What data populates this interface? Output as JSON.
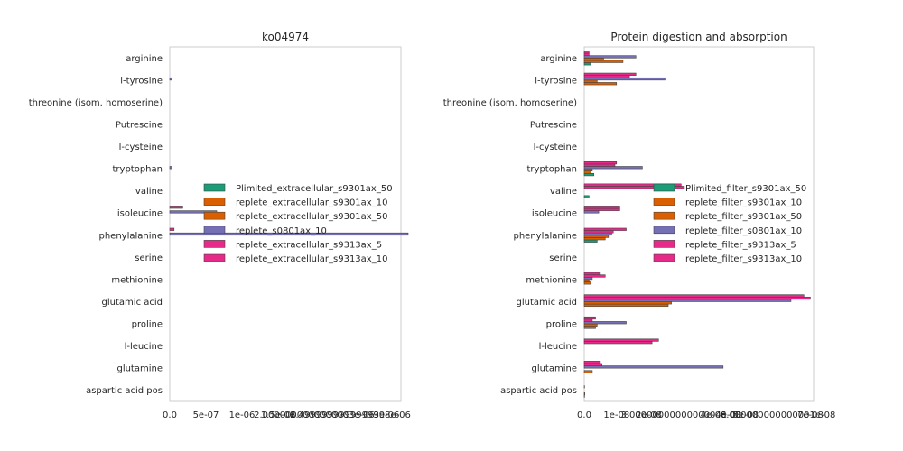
{
  "chart_data": [
    {
      "type": "bar",
      "orientation": "horizontal",
      "title": "ko04974",
      "xlabel": "",
      "ylabel": "",
      "categories": [
        "arginine",
        "l-tyrosine",
        "threonine (isom. homoserine)",
        "Putrescine",
        "l-cysteine",
        "tryptophan",
        "valine",
        "isoleucine",
        "phenylalanine",
        "serine",
        "methionine",
        "glutamic acid",
        "proline",
        "l-leucine",
        "glutamine",
        "aspartic acid pos"
      ],
      "xlim": [
        0,
        3.2e-06
      ],
      "xticks": [
        0,
        5e-07,
        1e-06,
        1.5e-06,
        2e-06,
        2.5e-06,
        3e-06
      ],
      "xtick_labels": [
        "0.0",
        "5e-07",
        "1e-06",
        "1.5e-06",
        "2.0000000000000003e-06",
        "2.4999999999999998e-06",
        "3e-06"
      ],
      "grid": false,
      "legend_position": "center-right",
      "series": [
        {
          "name": "Plimited_extracellular_s9301ax_50",
          "color": "#1b9e77",
          "values": [
            0,
            0,
            0,
            0,
            0,
            0,
            0,
            0,
            0,
            0,
            0,
            0,
            0,
            0,
            0,
            0
          ]
        },
        {
          "name": "replete_extracellular_s9301ax_10",
          "color": "#d95f02",
          "values": [
            0,
            0,
            0,
            0,
            0,
            0,
            0,
            0,
            0,
            0,
            0,
            0,
            0,
            0,
            0,
            0
          ]
        },
        {
          "name": "replete_extracellular_s9301ax_50",
          "color": "#d95f02",
          "values": [
            0,
            0,
            0,
            0,
            0,
            0,
            0,
            0,
            0,
            0,
            0,
            0,
            0,
            0,
            0,
            0
          ]
        },
        {
          "name": "replete_s0801ax_10",
          "color": "#7570b3",
          "values": [
            0,
            3e-08,
            0,
            0,
            0,
            3e-08,
            0,
            6.5e-07,
            3.3e-06,
            0,
            0,
            0,
            0,
            0,
            0,
            0
          ]
        },
        {
          "name": "replete_extracellular_s9313ax_5",
          "color": "#e7298a",
          "values": [
            0,
            0,
            0,
            0,
            0,
            0,
            0,
            0,
            0,
            0,
            0,
            0,
            0,
            0,
            0,
            0
          ]
        },
        {
          "name": "replete_extracellular_s9313ax_10",
          "color": "#e7298a",
          "values": [
            0,
            0,
            0,
            0,
            0,
            0,
            0,
            1.8e-07,
            6e-08,
            0,
            0,
            0,
            0,
            0,
            0,
            0
          ]
        }
      ]
    },
    {
      "type": "bar",
      "orientation": "horizontal",
      "title": "Protein digestion and absorption",
      "xlabel": "",
      "ylabel": "",
      "categories": [
        "arginine",
        "l-tyrosine",
        "threonine (isom. homoserine)",
        "Putrescine",
        "l-cysteine",
        "tryptophan",
        "valine",
        "isoleucine",
        "phenylalanine",
        "serine",
        "methionine",
        "glutamic acid",
        "proline",
        "l-leucine",
        "glutamine",
        "aspartic acid pos"
      ],
      "xlim": [
        0,
        7.1e-08
      ],
      "xticks": [
        0,
        1e-08,
        2e-08,
        3e-08,
        4e-08,
        5e-08,
        6e-08,
        7e-08
      ],
      "xtick_labels": [
        "0.0",
        "1e-08",
        "2e-08",
        "3.0000000000000004e-08",
        "4e-08",
        "5e-08",
        "6.000000000000001e-08",
        "7e-08"
      ],
      "grid": false,
      "legend_position": "center-right",
      "series": [
        {
          "name": "Plimited_filter_s9301ax_50",
          "color": "#1b9e77",
          "values": [
            2e-09,
            0,
            0,
            0,
            0,
            3e-09,
            1.5e-09,
            0,
            4e-09,
            0,
            0,
            0,
            0,
            0,
            0,
            1e-10
          ]
        },
        {
          "name": "replete_filter_s9301ax_10",
          "color": "#d95f02",
          "values": [
            1.2e-08,
            1e-08,
            0,
            0,
            0,
            2e-09,
            0,
            0,
            6.5e-09,
            0,
            2e-09,
            2.6e-08,
            3.5e-09,
            0,
            2.5e-09,
            2e-10
          ]
        },
        {
          "name": "replete_filter_s9301ax_50",
          "color": "#d95f02",
          "values": [
            6e-09,
            4e-09,
            0,
            0,
            0,
            2.5e-09,
            0,
            0,
            7.5e-09,
            0,
            1.5e-09,
            2.7e-08,
            4e-09,
            0,
            0,
            0
          ]
        },
        {
          "name": "replete_filter_s0801ax_10",
          "color": "#7570b3",
          "values": [
            1.6e-08,
            2.5e-08,
            0,
            0,
            0,
            1.8e-08,
            0,
            4.5e-09,
            8.5e-09,
            0,
            2.5e-09,
            6.4e-08,
            1.3e-08,
            0,
            4.3e-08,
            0
          ]
        },
        {
          "name": "replete_filter_s9313ax_5",
          "color": "#e7298a",
          "values": [
            1.5e-09,
            1.4e-08,
            0,
            0,
            0,
            9.5e-09,
            3.1e-08,
            1.1e-08,
            9e-09,
            0,
            6.5e-09,
            7e-08,
            2.5e-09,
            2.1e-08,
            5.5e-09,
            1e-10
          ]
        },
        {
          "name": "replete_filter_s9313ax_10",
          "color": "#e7298a",
          "values": [
            1.5e-09,
            1.6e-08,
            0,
            0,
            0,
            1e-08,
            3e-08,
            1.1e-08,
            1.3e-08,
            0,
            5e-09,
            6.8e-08,
            3.5e-09,
            2.3e-08,
            5e-09,
            0
          ]
        }
      ]
    }
  ]
}
